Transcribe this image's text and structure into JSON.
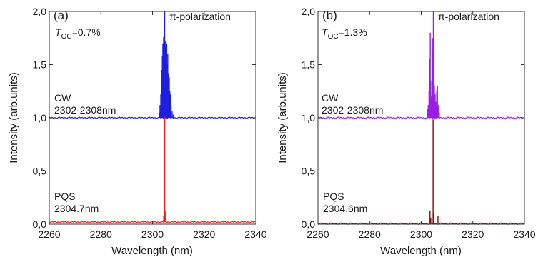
{
  "chart_data": [
    {
      "type": "line",
      "panel_label": "(a)",
      "polarization": "π-polarization",
      "toc_prefix": "T",
      "toc_subscript": "OC",
      "toc_value": "=0.7%",
      "xlabel": "Wavelength (nm)",
      "ylabel": "Intensity (arb.units)",
      "xlim": [
        2260,
        2340
      ],
      "ylim": [
        0.0,
        2.0
      ],
      "xticks": [
        "2260",
        "2280",
        "2300",
        "2320",
        "2340"
      ],
      "yticks": [
        "0,0",
        "0,5",
        "1,0",
        "1,5",
        "2,0"
      ],
      "series": [
        {
          "name": "CW",
          "range_label": "2302-2308nm",
          "color": "#1f1fe0",
          "baseline": 1.0,
          "peaks": [
            [
              2302.6,
              0.05
            ],
            [
              2302.9,
              0.12
            ],
            [
              2303.2,
              0.22
            ],
            [
              2303.4,
              0.3
            ],
            [
              2303.6,
              0.45
            ],
            [
              2303.8,
              0.58
            ],
            [
              2304.0,
              0.7
            ],
            [
              2304.1,
              0.5
            ],
            [
              2304.3,
              0.76
            ],
            [
              2304.5,
              0.62
            ],
            [
              2304.7,
              1.0
            ],
            [
              2304.9,
              0.72
            ],
            [
              2305.1,
              0.68
            ],
            [
              2305.3,
              0.55
            ],
            [
              2305.5,
              0.7
            ],
            [
              2305.7,
              0.5
            ],
            [
              2305.9,
              0.6
            ],
            [
              2306.1,
              0.42
            ],
            [
              2306.3,
              0.35
            ],
            [
              2306.5,
              0.38
            ],
            [
              2306.7,
              0.25
            ],
            [
              2306.9,
              0.22
            ],
            [
              2307.2,
              0.12
            ],
            [
              2307.6,
              0.06
            ],
            [
              2308.0,
              0.03
            ]
          ]
        },
        {
          "name": "PQS",
          "range_label": "2304.7nm",
          "color": "#ff1a1a",
          "baseline": 0.02,
          "peaks": [
            [
              2304.3,
              0.06
            ],
            [
              2304.5,
              0.12
            ],
            [
              2304.7,
              0.99
            ],
            [
              2304.9,
              0.1
            ],
            [
              2305.2,
              0.05
            ]
          ]
        }
      ]
    },
    {
      "type": "line",
      "panel_label": "(b)",
      "polarization": "π-polarization",
      "toc_prefix": "T",
      "toc_subscript": "OC",
      "toc_value": "=1.3%",
      "xlabel": "Wavelength (nm)",
      "ylabel": "Intensity (arb.units)",
      "xlim": [
        2260,
        2340
      ],
      "ylim": [
        0.0,
        2.0
      ],
      "xticks": [
        "2260",
        "2280",
        "2300",
        "2320",
        "2340"
      ],
      "yticks": [
        "0,0",
        "0,5",
        "1,0",
        "1,5",
        "2,0"
      ],
      "series": [
        {
          "name": "CW",
          "range_label": "2302-2308nm",
          "color": "#9a1fe6",
          "baseline": 1.0,
          "peaks": [
            [
              2302.4,
              0.08
            ],
            [
              2302.7,
              0.12
            ],
            [
              2303.0,
              0.25
            ],
            [
              2303.3,
              0.55
            ],
            [
              2303.5,
              0.8
            ],
            [
              2303.7,
              0.35
            ],
            [
              2304.0,
              0.2
            ],
            [
              2304.3,
              0.62
            ],
            [
              2304.5,
              0.75
            ],
            [
              2304.7,
              1.0
            ],
            [
              2304.9,
              0.55
            ],
            [
              2305.1,
              0.3
            ],
            [
              2305.4,
              0.22
            ],
            [
              2305.7,
              0.15
            ],
            [
              2306.0,
              0.25
            ],
            [
              2306.3,
              0.3
            ],
            [
              2306.6,
              0.12
            ],
            [
              2307.0,
              0.05
            ]
          ]
        },
        {
          "name": "PQS",
          "range_label": "2304.6nm",
          "color": "#8b0a0a",
          "baseline": 0.005,
          "peaks": [
            [
              2303.4,
              0.12
            ],
            [
              2303.7,
              0.05
            ],
            [
              2304.6,
              0.98
            ],
            [
              2304.9,
              0.1
            ],
            [
              2306.5,
              0.07
            ]
          ]
        }
      ]
    }
  ]
}
